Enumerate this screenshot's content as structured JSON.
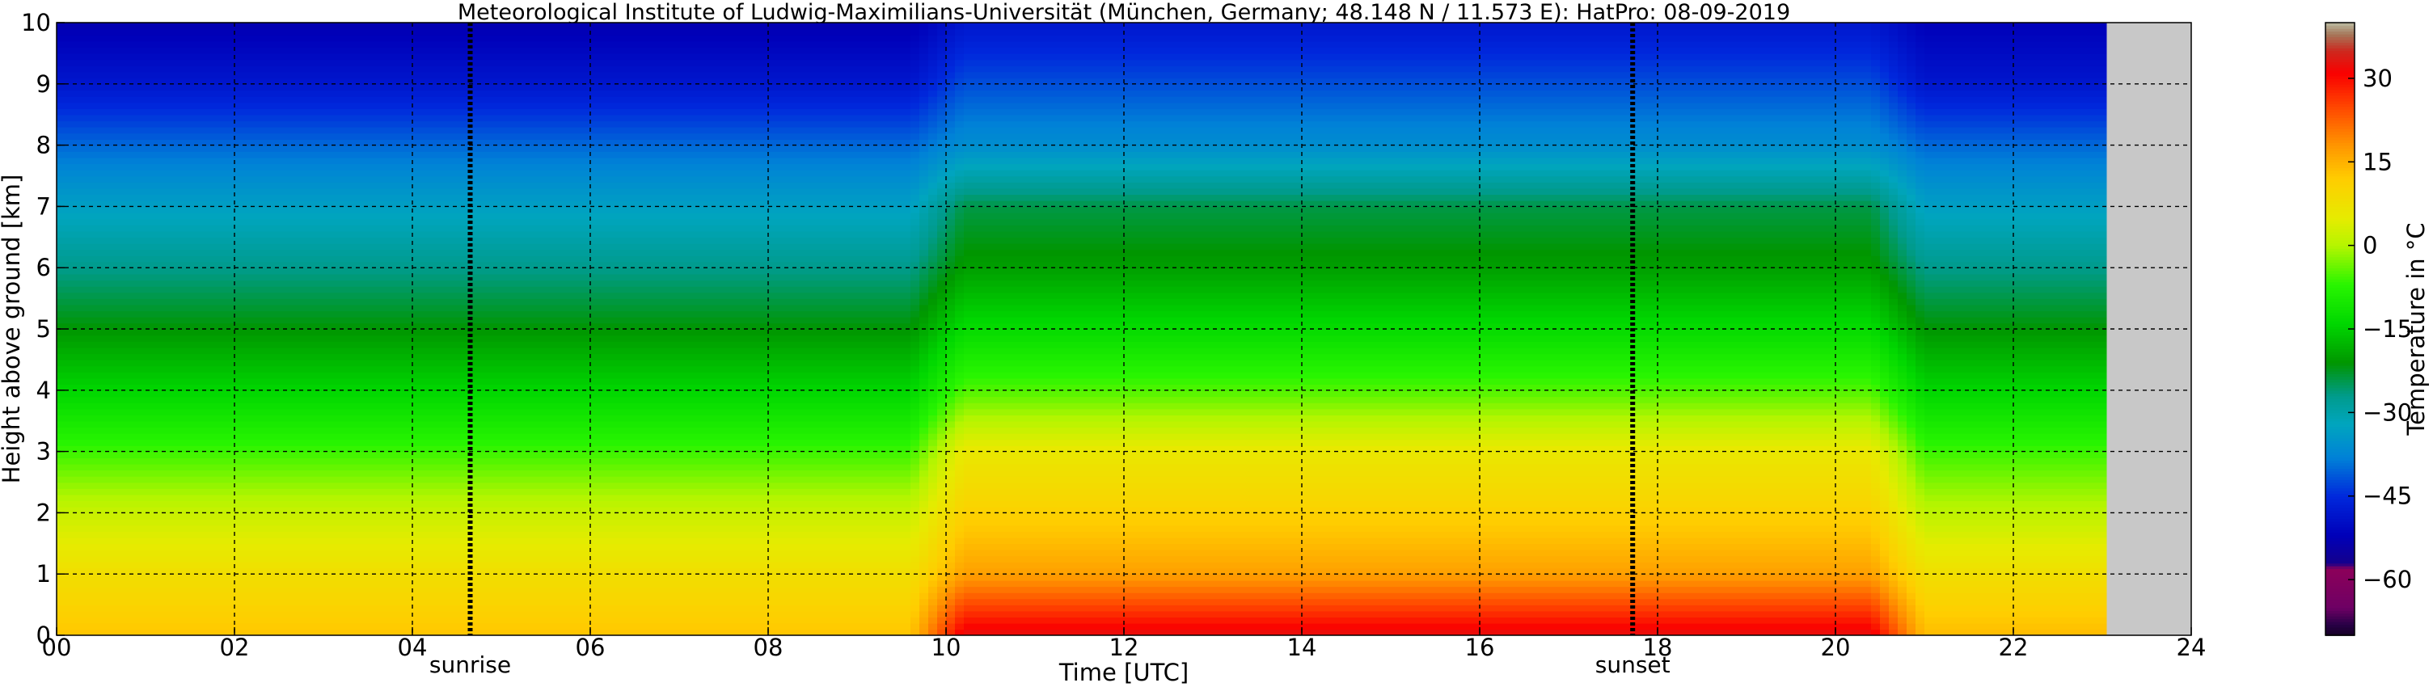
{
  "chart_data": {
    "type": "heatmap",
    "title": "Meteorological Institute of Ludwig-Maximilians-Universität (München, Germany; 48.148 N / 11.573 E):    HatPro: 08-09-2019",
    "xlabel": "Time [UTC]",
    "ylabel": "Height above ground [km]",
    "colorbar_label": "Temperature in °C",
    "xlim": [
      0,
      24
    ],
    "ylim": [
      0,
      10
    ],
    "x_ticks": [
      "00",
      "02",
      "04",
      "06",
      "08",
      "10",
      "12",
      "14",
      "16",
      "18",
      "20",
      "22",
      "24"
    ],
    "y_ticks": [
      "0",
      "1",
      "2",
      "3",
      "4",
      "5",
      "6",
      "7",
      "8",
      "9",
      "10"
    ],
    "colorbar_ticks": [
      "30",
      "15",
      "0",
      "−15",
      "−30",
      "−45",
      "−60"
    ],
    "colorbar_range": [
      -70,
      40
    ],
    "grid": true,
    "no_data_from_hour": 23.05,
    "events": [
      {
        "label": "sunrise",
        "hour": 4.65
      },
      {
        "label": "sunset",
        "hour": 17.72
      }
    ],
    "temperature_profile_by_height_km": {
      "heights_km": [
        0,
        1,
        2,
        3,
        4,
        5,
        6,
        7,
        8,
        9,
        10
      ],
      "period_hours": [
        {
          "from": 0,
          "to": 9.6,
          "temps_c": [
            13,
            8,
            2,
            -6,
            -14,
            -21,
            -27,
            -33,
            -40,
            -48,
            -53
          ]
        },
        {
          "from": 10.2,
          "to": 20.4,
          "temps_c": [
            33,
            17,
            11,
            6,
            -5,
            -13,
            -20,
            -24,
            -36,
            -42,
            -48
          ]
        },
        {
          "from": 21.0,
          "to": 23.05,
          "temps_c": [
            14,
            8,
            1,
            -6,
            -14,
            -21,
            -27,
            -33,
            -40,
            -48,
            -52
          ]
        }
      ]
    }
  }
}
